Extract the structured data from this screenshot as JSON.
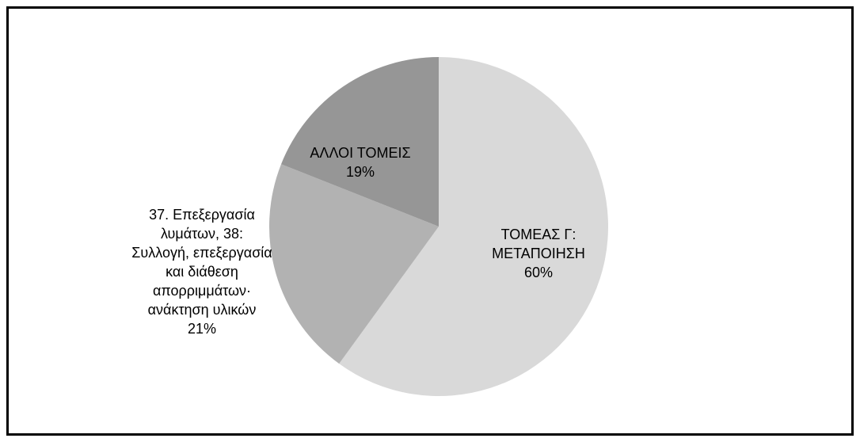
{
  "chart_data": {
    "type": "pie",
    "categories": [
      "ΤΟΜΕΑΣ Γ: ΜΕΤΑΠΟΙΗΣΗ",
      "37. Επεξεργασία λυμάτων, 38: Συλλογή, επεξεργασία και διάθεση απορριμμάτων· ανάκτηση υλικών",
      "ΑΛΛΟΙ ΤΟΜΕΙΣ"
    ],
    "values": [
      60,
      21,
      19
    ],
    "value_labels": [
      "60%",
      "21%",
      "19%"
    ],
    "colors": [
      "#d9d9d9",
      "#b2b2b2",
      "#969696"
    ]
  }
}
